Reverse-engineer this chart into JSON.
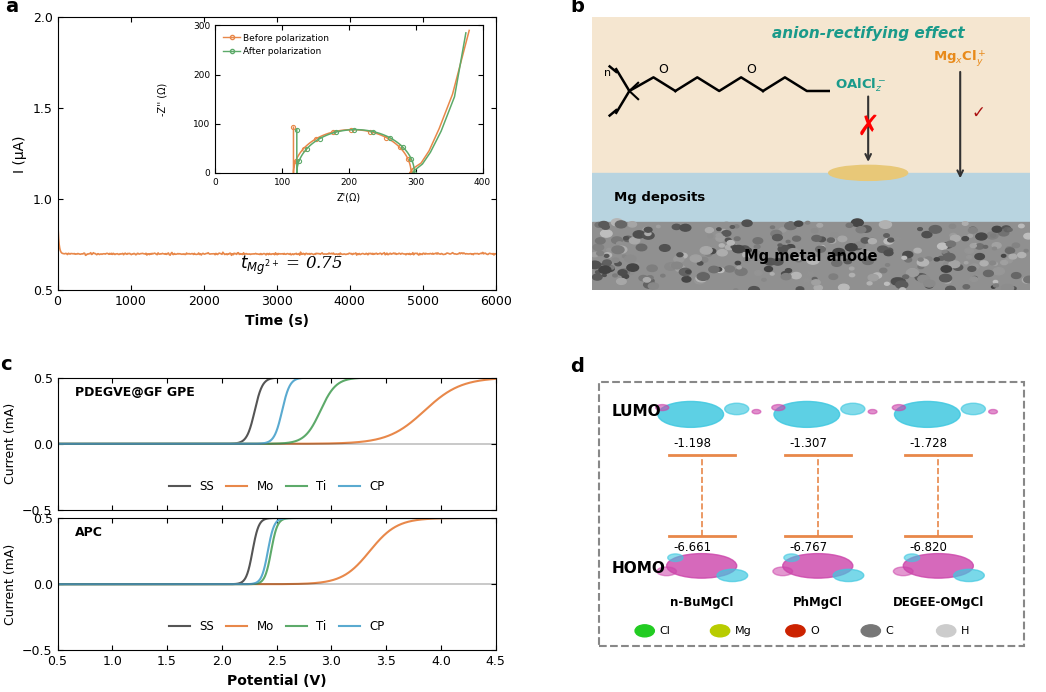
{
  "panel_a": {
    "xlabel": "Time (s)",
    "ylabel": "I (μA)",
    "xlim": [
      0,
      6000
    ],
    "ylim": [
      0.5,
      2.0
    ],
    "yticks": [
      0.5,
      1.0,
      1.5,
      2.0
    ],
    "xticks": [
      0,
      1000,
      2000,
      3000,
      4000,
      5000,
      6000
    ],
    "main_color": "#E8884A",
    "inset": {
      "xlabel": "Z'(Ω)",
      "ylabel": "-Z'' (Ω)",
      "xlim": [
        0,
        400
      ],
      "ylim": [
        0,
        300
      ],
      "xticks": [
        0,
        100,
        200,
        300,
        400
      ],
      "yticks": [
        0,
        100,
        200,
        300
      ],
      "before_color": "#E8884A",
      "after_color": "#5DAA6A",
      "before_label": "Before polarization",
      "after_label": "After polarization"
    }
  },
  "panel_b": {
    "bg_color": "#F5E6D0",
    "blue_layer_color": "#B8D4E0",
    "gray_layer_color": "#909090",
    "teal_color": "#1A9A8A",
    "orange_color": "#E88A1A"
  },
  "panel_c": {
    "xlabel": "Potential (V)",
    "xlim": [
      0.5,
      4.5
    ],
    "ylim": [
      -0.5,
      0.5
    ],
    "xticks": [
      0.5,
      1.0,
      1.5,
      2.0,
      2.5,
      3.0,
      3.5,
      4.0,
      4.5
    ],
    "top_label": "PDEGVE@GF GPE",
    "bottom_label": "APC",
    "ss_color": "#555555",
    "mo_color": "#E8884A",
    "ti_color": "#5DAA6A",
    "cp_color": "#5AAAD0",
    "legend_labels": [
      "SS",
      "Mo",
      "Ti",
      "CP"
    ]
  },
  "panel_d": {
    "lumo_label": "LUMO",
    "homo_label": "HOMO",
    "mol1_label": "n-BuMgCl",
    "mol2_label": "PhMgCl",
    "mol3_label": "DEGEE-OMgCl",
    "mol1_lumo": "-1.198",
    "mol2_lumo": "-1.307",
    "mol3_lumo": "-1.728",
    "mol1_homo": "-6.661",
    "mol2_homo": "-6.767",
    "mol3_homo": "-6.820",
    "orange_color": "#E8884A",
    "cyan_color": "#40C8E0",
    "magenta_color": "#CC44AA",
    "legend_colors": [
      "#22CC22",
      "#B8CC00",
      "#CC2200",
      "#777777",
      "#CCCCCC"
    ],
    "legend_labels": [
      "Cl",
      "Mg",
      "O",
      "C",
      "H"
    ]
  }
}
